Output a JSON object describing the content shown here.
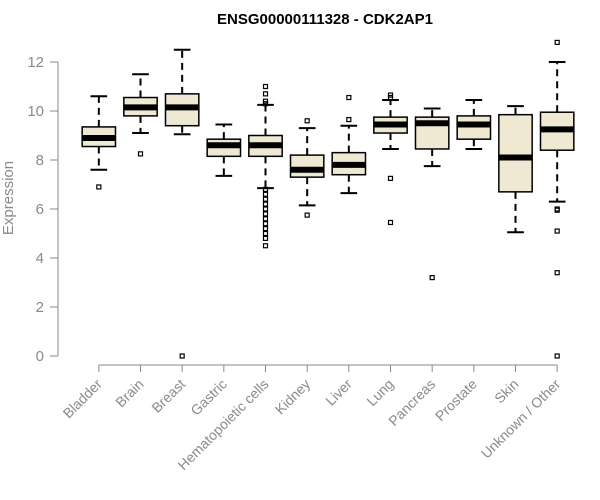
{
  "chart_data": {
    "type": "box",
    "title": "ENSG00000111328 - CDK2AP1",
    "ylabel": "Expression",
    "xlabel": "",
    "ylim": [
      0,
      12.5
    ],
    "yticks": [
      0,
      2,
      4,
      6,
      8,
      10,
      12
    ],
    "box_fill": "#efe9d4",
    "box_stroke": "#000000",
    "axis_color": "#8a8a8a",
    "categories": [
      "Bladder",
      "Brain",
      "Breast",
      "Gastric",
      "Hematopoietic cells",
      "Kidney",
      "Liver",
      "Lung",
      "Pancreas",
      "Prostate",
      "Skin",
      "Unknown / Other"
    ],
    "boxes": [
      {
        "min": 7.6,
        "q1": 8.55,
        "median": 8.9,
        "q3": 9.35,
        "max": 10.6,
        "outliers": [
          6.9
        ]
      },
      {
        "min": 9.1,
        "q1": 9.8,
        "median": 10.15,
        "q3": 10.55,
        "max": 11.5,
        "outliers": [
          8.25
        ]
      },
      {
        "min": 9.05,
        "q1": 9.4,
        "median": 10.15,
        "q3": 10.7,
        "max": 12.5,
        "outliers": [
          0.0
        ]
      },
      {
        "min": 7.35,
        "q1": 8.15,
        "median": 8.6,
        "q3": 8.85,
        "max": 9.45,
        "outliers": []
      },
      {
        "min": 6.85,
        "q1": 8.15,
        "median": 8.6,
        "q3": 9.0,
        "max": 10.25,
        "outliers": [
          11.0,
          10.7,
          10.4,
          10.3,
          6.8,
          6.6,
          6.4,
          6.2,
          6.0,
          5.8,
          5.6,
          5.4,
          5.2,
          5.0,
          4.8,
          4.5
        ]
      },
      {
        "min": 6.15,
        "q1": 7.3,
        "median": 7.6,
        "q3": 8.2,
        "max": 9.3,
        "outliers": [
          9.6,
          5.75
        ]
      },
      {
        "min": 6.65,
        "q1": 7.4,
        "median": 7.8,
        "q3": 8.3,
        "max": 9.4,
        "outliers": [
          10.55,
          9.65
        ]
      },
      {
        "min": 8.45,
        "q1": 9.1,
        "median": 9.45,
        "q3": 9.75,
        "max": 10.45,
        "outliers": [
          10.65,
          10.55,
          7.25,
          5.45
        ]
      },
      {
        "min": 7.75,
        "q1": 8.45,
        "median": 9.5,
        "q3": 9.75,
        "max": 10.1,
        "outliers": [
          3.2
        ]
      },
      {
        "min": 8.45,
        "q1": 8.85,
        "median": 9.45,
        "q3": 9.8,
        "max": 10.45,
        "outliers": []
      },
      {
        "min": 5.05,
        "q1": 6.7,
        "median": 8.1,
        "q3": 9.85,
        "max": 10.2,
        "outliers": []
      },
      {
        "min": 6.3,
        "q1": 8.4,
        "median": 9.25,
        "q3": 9.95,
        "max": 12.0,
        "outliers": [
          12.8,
          6.0,
          5.95,
          5.1,
          3.4,
          0.0
        ]
      }
    ]
  }
}
